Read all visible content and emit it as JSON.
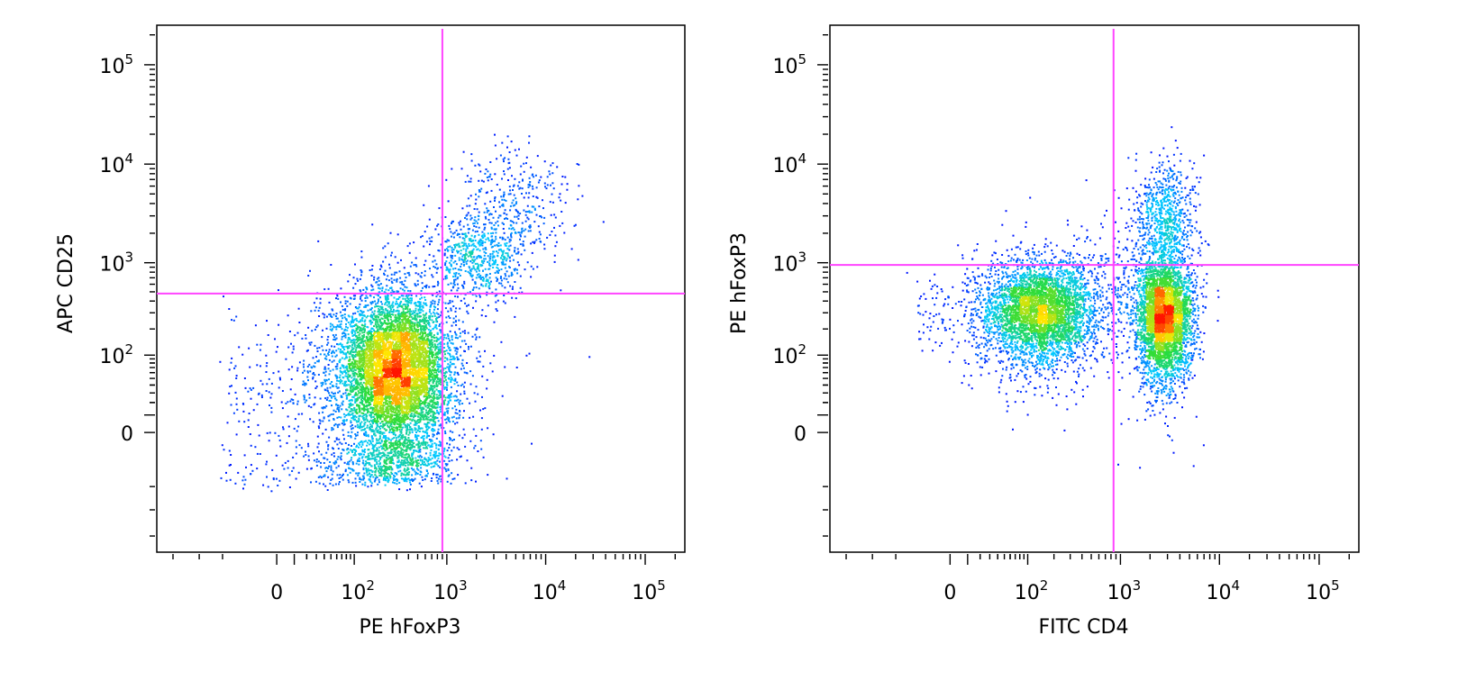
{
  "chart_data": [
    {
      "type": "scatter",
      "style": "pseudocolor density dot plot (blue-low to red-high), biexponential axes",
      "xlabel": "PE hFoxP3",
      "ylabel": "APC CD25",
      "x_scale": "biexponential",
      "y_scale": "biexponential",
      "xlim": [
        -300,
        250000
      ],
      "ylim": [
        -300,
        250000
      ],
      "x_ticks": [
        {
          "value": 0,
          "label": "0"
        },
        {
          "value": 100,
          "base": "10",
          "exp": "2"
        },
        {
          "value": 1000,
          "base": "10",
          "exp": "3"
        },
        {
          "value": 10000,
          "base": "10",
          "exp": "4"
        },
        {
          "value": 100000,
          "base": "10",
          "exp": "5"
        }
      ],
      "y_ticks": [
        {
          "value": 0,
          "label": "0"
        },
        {
          "value": 100,
          "base": "10",
          "exp": "2"
        },
        {
          "value": 1000,
          "base": "10",
          "exp": "3"
        },
        {
          "value": 10000,
          "base": "10",
          "exp": "4"
        },
        {
          "value": 100000,
          "base": "10",
          "exp": "5"
        }
      ],
      "quadrant_gate": {
        "x": 900,
        "y": 480,
        "color": "#ff44ff"
      },
      "populations": [
        {
          "center": [
            320,
            90
          ],
          "spread": [
            0.55,
            0.75
          ],
          "fraction": 0.78
        },
        {
          "center": [
            2000,
            1200
          ],
          "spread": [
            0.45,
            0.45
          ],
          "fraction": 0.07
        },
        {
          "center": [
            5000,
            4000
          ],
          "spread": [
            0.6,
            0.6
          ],
          "fraction": 0.04
        },
        {
          "center": [
            150,
            40
          ],
          "spread": [
            1.2,
            1.0
          ],
          "fraction": 0.11
        }
      ]
    },
    {
      "type": "scatter",
      "style": "pseudocolor density dot plot (blue-low to red-high), biexponential axes",
      "xlabel": "FITC CD4",
      "ylabel": "PE hFoxP3",
      "x_scale": "biexponential",
      "y_scale": "biexponential",
      "xlim": [
        -300,
        250000
      ],
      "ylim": [
        -300,
        250000
      ],
      "x_ticks": [
        {
          "value": 0,
          "label": "0"
        },
        {
          "value": 100,
          "base": "10",
          "exp": "2"
        },
        {
          "value": 1000,
          "base": "10",
          "exp": "3"
        },
        {
          "value": 10000,
          "base": "10",
          "exp": "4"
        },
        {
          "value": 100000,
          "base": "10",
          "exp": "5"
        }
      ],
      "y_ticks": [
        {
          "value": 0,
          "label": "0"
        },
        {
          "value": 100,
          "base": "10",
          "exp": "2"
        },
        {
          "value": 1000,
          "base": "10",
          "exp": "3"
        },
        {
          "value": 10000,
          "base": "10",
          "exp": "4"
        },
        {
          "value": 100000,
          "base": "10",
          "exp": "5"
        }
      ],
      "quadrant_gate": {
        "x": 850,
        "y": 950,
        "color": "#ff44ff"
      },
      "populations": [
        {
          "center": [
            160,
            330
          ],
          "spread": [
            0.55,
            0.5
          ],
          "fraction": 0.46
        },
        {
          "center": [
            2800,
            300
          ],
          "spread": [
            0.28,
            0.6
          ],
          "fraction": 0.42
        },
        {
          "center": [
            2800,
            3000
          ],
          "spread": [
            0.3,
            0.55
          ],
          "fraction": 0.08
        },
        {
          "center": [
            900,
            600
          ],
          "spread": [
            0.8,
            0.8
          ],
          "fraction": 0.04
        }
      ]
    }
  ]
}
